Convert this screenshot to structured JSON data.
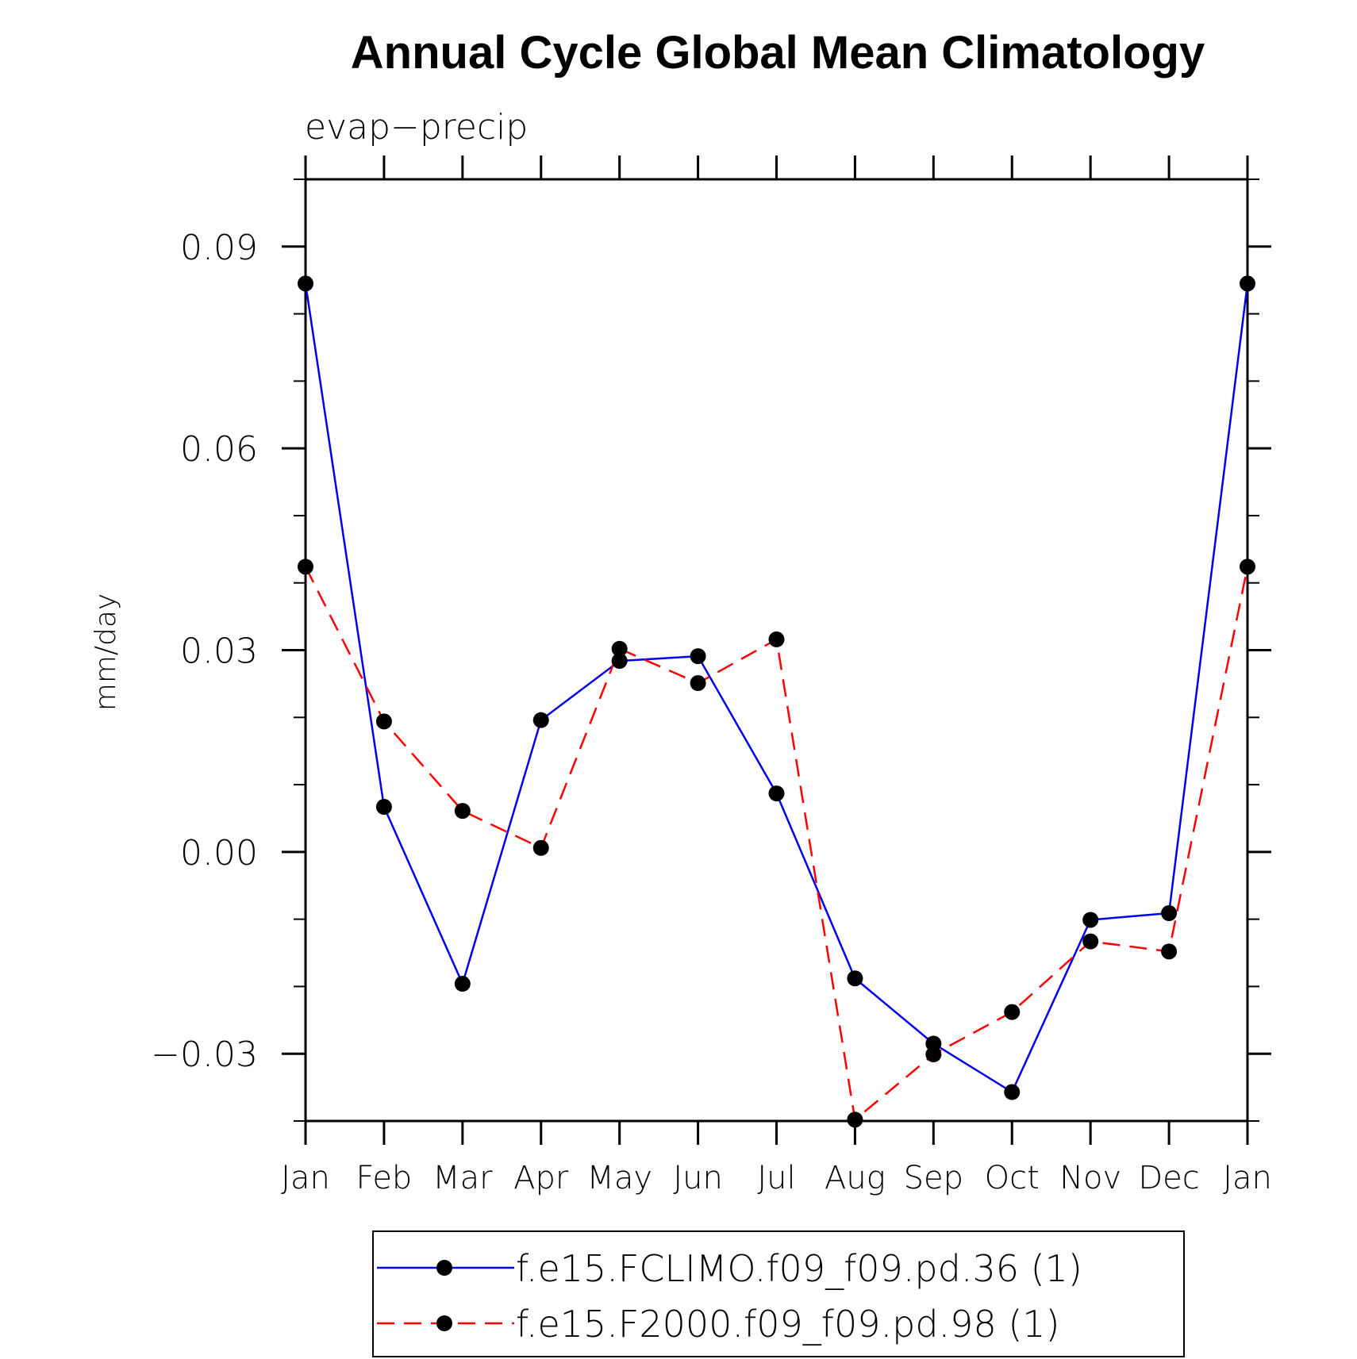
{
  "chart_data": {
    "type": "line",
    "title": "Annual Cycle Global Mean Climatology",
    "subtitle": "evap−precip",
    "ylabel": "mm/day",
    "xlabel": "",
    "categories": [
      "Jan",
      "Feb",
      "Mar",
      "Apr",
      "May",
      "Jun",
      "Jul",
      "Aug",
      "Sep",
      "Oct",
      "Nov",
      "Dec",
      "Jan"
    ],
    "ylim": [
      -0.04,
      0.1
    ],
    "yticks": [
      -0.03,
      0.0,
      0.03,
      0.06,
      0.09
    ],
    "ytick_labels": [
      "−0.03",
      "0.00",
      "0.03",
      "0.06",
      "0.09"
    ],
    "yminor_step": 0.01,
    "grid": false,
    "legend_position": "bottom-center",
    "series": [
      {
        "name": "f.e15.FCLIMO.f09_f09.pd.36 (1)",
        "color": "#0000ee",
        "style": "solid",
        "marker": "filled-circle",
        "values": [
          0.0845,
          0.0067,
          -0.0196,
          0.0196,
          0.0284,
          0.0291,
          0.0087,
          -0.0188,
          -0.0285,
          -0.0357,
          -0.0101,
          -0.0091,
          0.0845
        ]
      },
      {
        "name": "f.e15.F2000.f09_f09.pd.98 (1)",
        "color": "#ff0000",
        "style": "dashed",
        "marker": "filled-circle",
        "values": [
          0.0424,
          0.0194,
          0.0061,
          0.0006,
          0.0302,
          0.0251,
          0.0316,
          -0.0398,
          -0.0301,
          -0.0238,
          -0.0133,
          -0.0148,
          0.0424
        ]
      }
    ]
  },
  "colors": {
    "axis": "#000000",
    "marker": "#000000",
    "background": "#ffffff"
  }
}
